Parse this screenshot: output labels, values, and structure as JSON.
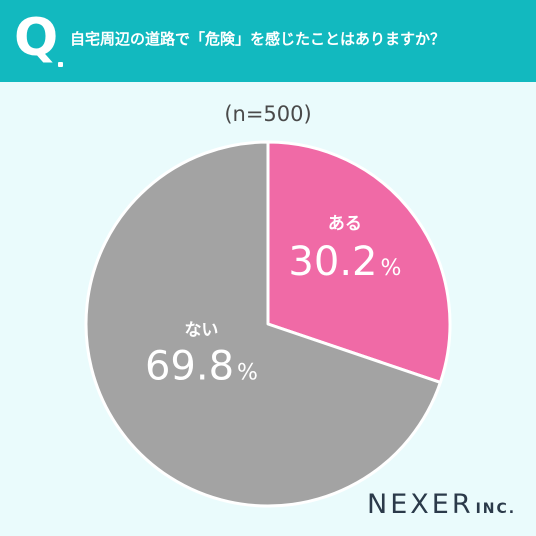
{
  "header": {
    "q_mark": "Q",
    "question": "自宅周辺の道路で「危険」を感じたことはありますか？"
  },
  "chart_data": {
    "type": "pie",
    "title": "自宅周辺の道路で「危険」を感じたことはありますか？",
    "subtitle": "(n=500)",
    "slices": [
      {
        "label": "ある",
        "value": 30.2,
        "display": "30.2",
        "unit": "%",
        "color": "#f06aa6"
      },
      {
        "label": "ない",
        "value": 69.8,
        "display": "69.8",
        "unit": "%",
        "color": "#a3a3a3"
      }
    ]
  },
  "brand": {
    "name": "NEXER",
    "suffix": "INC."
  }
}
